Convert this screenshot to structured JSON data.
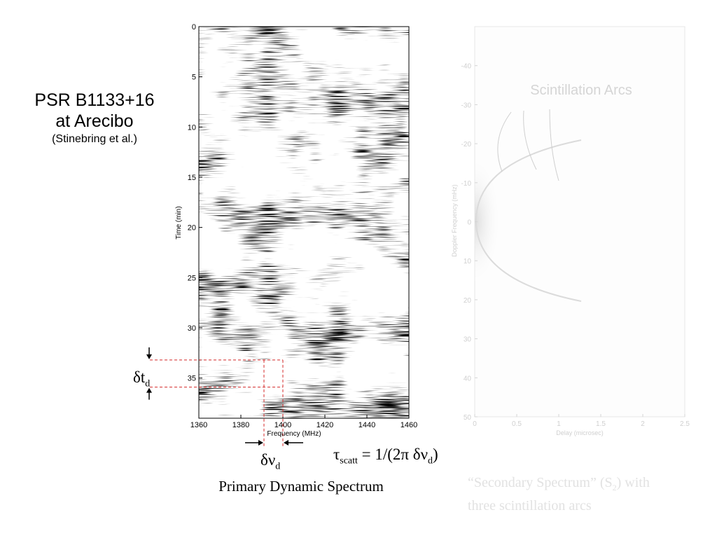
{
  "title": {
    "line1": "PSR B1133+16",
    "line2": "at Arecibo",
    "line3": "(Stinebring et al.)"
  },
  "primary_caption": "Primary Dynamic Spectrum",
  "formula": {
    "lhs": "τ",
    "lhs_sub": "scatt",
    "rhs_pre": " = 1/(2π δν",
    "rhs_sub": "d",
    "rhs_post": ")"
  },
  "dt_label": {
    "main": "δt",
    "sub": "d"
  },
  "dnu_label": {
    "main": "δν",
    "sub": "d"
  },
  "secondary_caption": {
    "pre": "“Secondary Spectrum” (S",
    "sub": "2",
    "post": ") with",
    "line2": "three scintillation arcs"
  },
  "colors": {
    "marker_red": "#d42a2a",
    "faded": "#dcdcdc"
  },
  "chart_data": [
    {
      "type": "heatmap",
      "title": "",
      "xlabel": "Frequency (MHz)",
      "ylabel": "Time (min)",
      "xlim": [
        1360,
        1460
      ],
      "ylim": [
        0,
        39
      ],
      "y_inverted": true,
      "xticks": [
        1360,
        1380,
        1400,
        1420,
        1440,
        1460
      ],
      "yticks": [
        0,
        5,
        10,
        15,
        20,
        25,
        30,
        35
      ],
      "colormap": "grayscale",
      "markers": {
        "t_lines": [
          33.2,
          35.9
        ],
        "f_lines": [
          1391,
          1400
        ]
      }
    },
    {
      "type": "heatmap",
      "title": "Scintillation Arcs",
      "xlabel": "Delay (microsec)",
      "ylabel": "Doppler Frequency (mHz)",
      "xlim": [
        0,
        2.5
      ],
      "ylim": [
        -50,
        50
      ],
      "xticks": [
        0,
        0.5,
        1,
        1.5,
        2,
        2.5
      ],
      "yticks": [
        -40,
        -30,
        -20,
        -10,
        0,
        10,
        20,
        30,
        40,
        50
      ],
      "arcs": 3,
      "faded": true
    }
  ]
}
